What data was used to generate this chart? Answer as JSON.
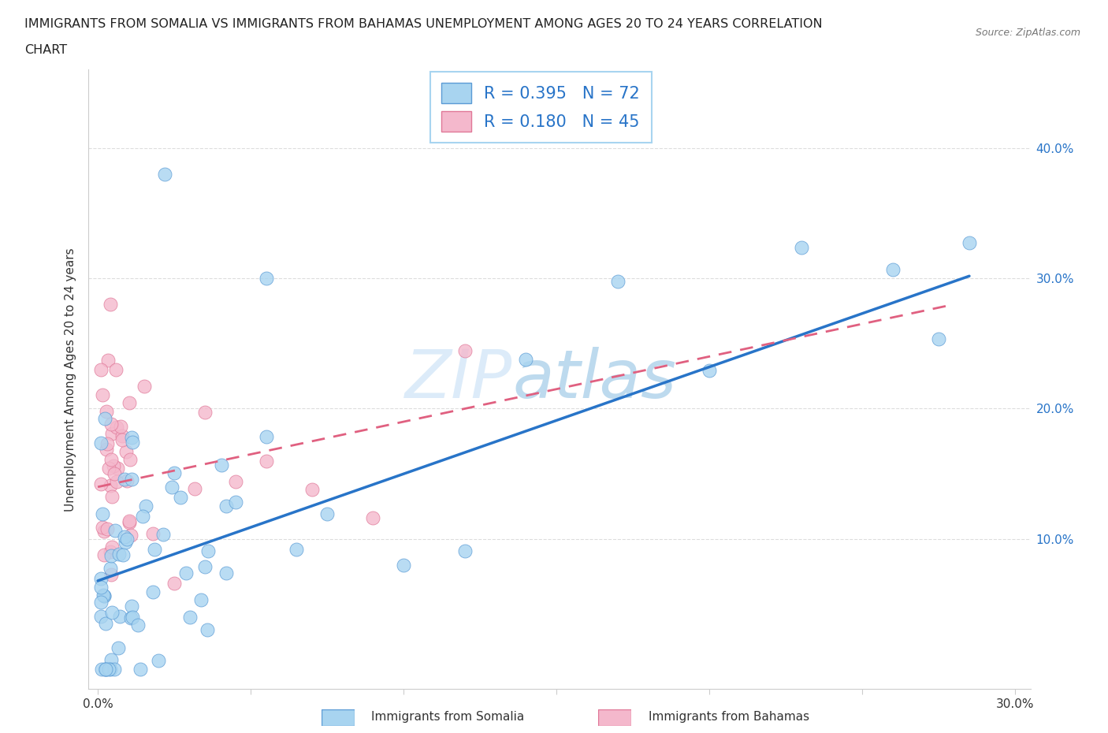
{
  "title_line1": "IMMIGRANTS FROM SOMALIA VS IMMIGRANTS FROM BAHAMAS UNEMPLOYMENT AMONG AGES 20 TO 24 YEARS CORRELATION",
  "title_line2": "CHART",
  "source": "Source: ZipAtlas.com",
  "ylabel": "Unemployment Among Ages 20 to 24 years",
  "xlim": [
    -0.003,
    0.305
  ],
  "ylim": [
    -0.015,
    0.46
  ],
  "xticks": [
    0.0,
    0.05,
    0.1,
    0.15,
    0.2,
    0.25,
    0.3
  ],
  "xticklabels_show": [
    "0.0%",
    "",
    "",
    "",
    "",
    "",
    "30.0%"
  ],
  "yticks": [
    0.0,
    0.1,
    0.2,
    0.3,
    0.4
  ],
  "yticklabels_right": [
    "",
    "10.0%",
    "20.0%",
    "30.0%",
    "40.0%"
  ],
  "watermark": "ZIPatlas",
  "legend_somalia_R": "0.395",
  "legend_somalia_N": "72",
  "legend_bahamas_R": "0.180",
  "legend_bahamas_N": "45",
  "somalia_color": "#a8d4f0",
  "bahamas_color": "#f4b8cc",
  "somalia_edge_color": "#5b9bd5",
  "bahamas_edge_color": "#e07898",
  "somalia_line_color": "#2874c8",
  "bahamas_line_color": "#e06080",
  "grid_color": "#dddddd",
  "right_tick_color": "#2874c8",
  "legend_border_color": "#a8d4f0"
}
